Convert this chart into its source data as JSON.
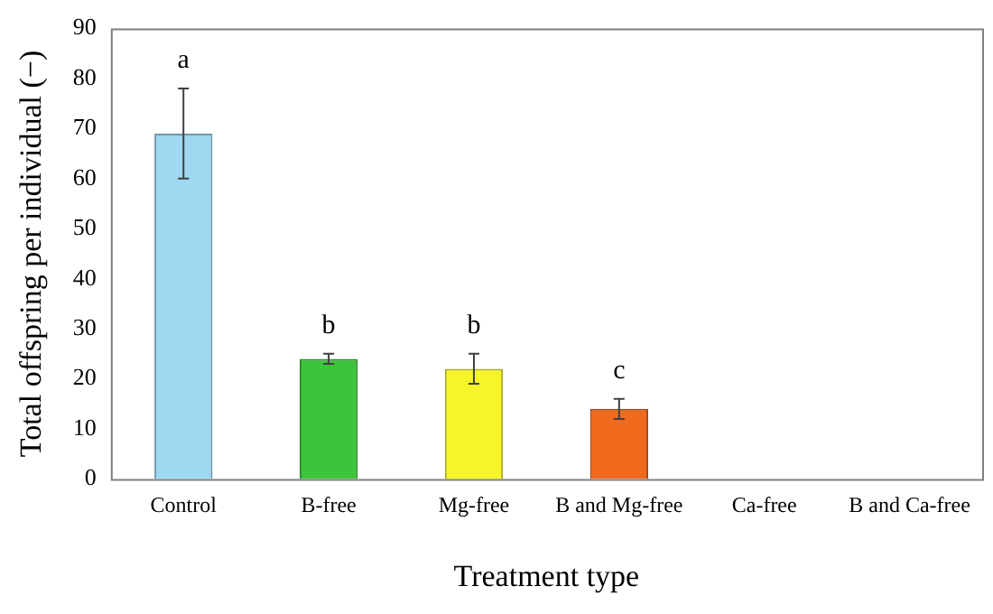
{
  "chart_data": {
    "type": "bar",
    "xlabel": "Treatment type",
    "ylabel": "Total offspring per individual (−)",
    "categories": [
      "Control",
      "B-free",
      "Mg-free",
      "B and Mg-free",
      "Ca-free",
      "B and Ca-free"
    ],
    "values": [
      69,
      24,
      22,
      14,
      0,
      0
    ],
    "errors": [
      9,
      1,
      3,
      2,
      null,
      null
    ],
    "colors": [
      "#9fd8f0",
      "#3cc43c",
      "#f5f52a",
      "#f06a1e",
      "#cccccc",
      "#cccccc"
    ],
    "ylim": [
      0,
      90
    ],
    "yticks": [
      0,
      10,
      20,
      30,
      40,
      50,
      60,
      70,
      80,
      90
    ],
    "grid": false,
    "legend": false,
    "annotations": [
      {
        "text": "a",
        "x": "Control",
        "y": 69
      },
      {
        "text": "b",
        "x": "B-free",
        "y": 24
      },
      {
        "text": "b",
        "x": "Mg-free",
        "y": 22
      },
      {
        "text": "c",
        "x": "B and Mg-free",
        "y": 14
      }
    ]
  }
}
